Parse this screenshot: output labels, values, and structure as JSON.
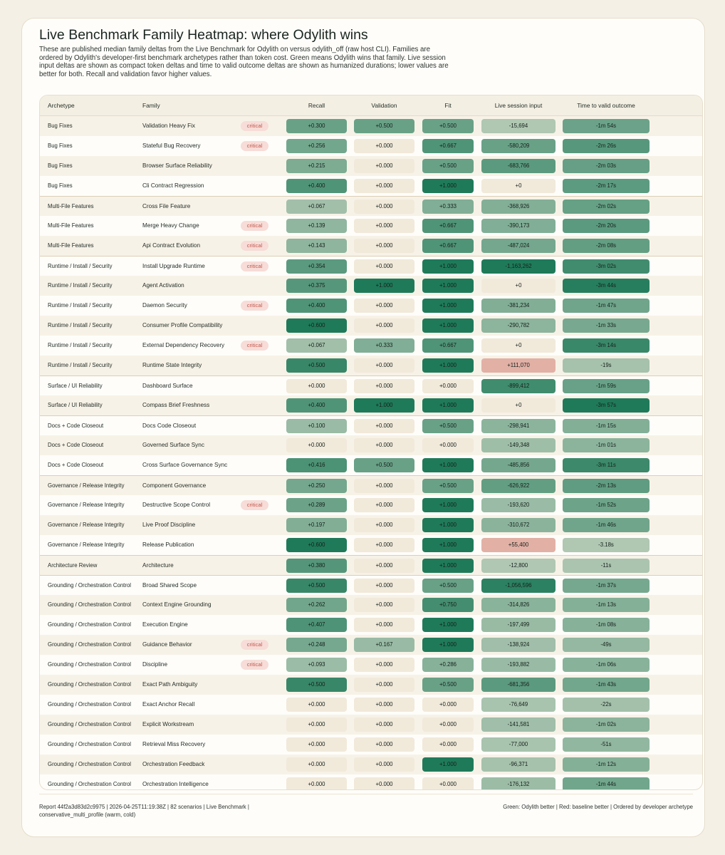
{
  "title": "Live Benchmark Family Heatmap: where Odylith wins",
  "subtitle": "These are published median family deltas from the Live Benchmark for Odylith on versus odylith_off (raw host CLI). Families are ordered by Odylith's developer-first benchmark archetypes rather than token cost. Green means Odylith wins that family. Live session input deltas are shown as compact token deltas and time to valid outcome deltas are shown as humanized durations; lower values are better for both. Recall and validation favor higher values.",
  "footer": {
    "left": "Report 44f2a3d83d2c9975 | 2026-04-25T11:19:38Z | 82 scenarios | Live Benchmark | conservative_multi_profile (warm, cold)",
    "right": "Green: Odylith better | Red: baseline better | Ordered by developer archetype"
  },
  "colors": {
    "win_strong": "#1f7a5a",
    "neutral": "#f1e9da",
    "loss": "#e2b0a5",
    "critical_bg": "#f7dcd7",
    "critical_text": "#c25a4f"
  },
  "chart_data": {
    "type": "heatmap",
    "columns": [
      "Archetype",
      "Family",
      "Recall",
      "Validation",
      "Fit",
      "Live session input",
      "Time to valid outcome"
    ],
    "critical_label": "critical",
    "rows": [
      {
        "archetype": "Bug Fixes",
        "family": "Validation Heavy Fix",
        "critical": true,
        "recall": "+0.300",
        "validation": "+0.500",
        "fit": "+0.500",
        "input": "-15,694",
        "time": "-1m 54s",
        "recall_v": 0.3,
        "validation_v": 0.5,
        "fit_v": 0.5,
        "input_v": -15694,
        "time_v": -114
      },
      {
        "archetype": "Bug Fixes",
        "family": "Stateful Bug Recovery",
        "critical": true,
        "recall": "+0.256",
        "validation": "+0.000",
        "fit": "+0.667",
        "input": "-580,209",
        "time": "-2m 26s",
        "recall_v": 0.256,
        "validation_v": 0,
        "fit_v": 0.667,
        "input_v": -580209,
        "time_v": -146
      },
      {
        "archetype": "Bug Fixes",
        "family": "Browser Surface Reliability",
        "critical": false,
        "recall": "+0.215",
        "validation": "+0.000",
        "fit": "+0.500",
        "input": "-683,766",
        "time": "-2m 03s",
        "recall_v": 0.215,
        "validation_v": 0,
        "fit_v": 0.5,
        "input_v": -683766,
        "time_v": -123
      },
      {
        "archetype": "Bug Fixes",
        "family": "Cli Contract Regression",
        "critical": false,
        "recall": "+0.400",
        "validation": "+0.000",
        "fit": "+1.000",
        "input": "+0",
        "time": "-2m 17s",
        "recall_v": 0.4,
        "validation_v": 0,
        "fit_v": 1,
        "input_v": 0,
        "time_v": -137
      },
      {
        "archetype": "Multi-File Features",
        "family": "Cross File Feature",
        "critical": false,
        "recall": "+0.067",
        "validation": "+0.000",
        "fit": "+0.333",
        "input": "-368,926",
        "time": "-2m 02s",
        "recall_v": 0.067,
        "validation_v": 0,
        "fit_v": 0.333,
        "input_v": -368926,
        "time_v": -122
      },
      {
        "archetype": "Multi-File Features",
        "family": "Merge Heavy Change",
        "critical": true,
        "recall": "+0.139",
        "validation": "+0.000",
        "fit": "+0.667",
        "input": "-390,173",
        "time": "-2m 20s",
        "recall_v": 0.139,
        "validation_v": 0,
        "fit_v": 0.667,
        "input_v": -390173,
        "time_v": -140
      },
      {
        "archetype": "Multi-File Features",
        "family": "Api Contract Evolution",
        "critical": true,
        "recall": "+0.143",
        "validation": "+0.000",
        "fit": "+0.667",
        "input": "-487,024",
        "time": "-2m 08s",
        "recall_v": 0.143,
        "validation_v": 0,
        "fit_v": 0.667,
        "input_v": -487024,
        "time_v": -128
      },
      {
        "archetype": "Runtime / Install / Security",
        "family": "Install Upgrade Runtime",
        "critical": true,
        "recall": "+0.354",
        "validation": "+0.000",
        "fit": "+1.000",
        "input": "-1,163,262",
        "time": "-3m 02s",
        "recall_v": 0.354,
        "validation_v": 0,
        "fit_v": 1,
        "input_v": -1163262,
        "time_v": -182
      },
      {
        "archetype": "Runtime / Install / Security",
        "family": "Agent Activation",
        "critical": false,
        "recall": "+0.375",
        "validation": "+1.000",
        "fit": "+1.000",
        "input": "+0",
        "time": "-3m 44s",
        "recall_v": 0.375,
        "validation_v": 1,
        "fit_v": 1,
        "input_v": 0,
        "time_v": -224
      },
      {
        "archetype": "Runtime / Install / Security",
        "family": "Daemon Security",
        "critical": true,
        "recall": "+0.400",
        "validation": "+0.000",
        "fit": "+1.000",
        "input": "-381,234",
        "time": "-1m 47s",
        "recall_v": 0.4,
        "validation_v": 0,
        "fit_v": 1,
        "input_v": -381234,
        "time_v": -107
      },
      {
        "archetype": "Runtime / Install / Security",
        "family": "Consumer Profile Compatibility",
        "critical": false,
        "recall": "+0.600",
        "validation": "+0.000",
        "fit": "+1.000",
        "input": "-290,782",
        "time": "-1m 33s",
        "recall_v": 0.6,
        "validation_v": 0,
        "fit_v": 1,
        "input_v": -290782,
        "time_v": -93
      },
      {
        "archetype": "Runtime / Install / Security",
        "family": "External Dependency Recovery",
        "critical": true,
        "recall": "+0.067",
        "validation": "+0.333",
        "fit": "+0.667",
        "input": "+0",
        "time": "-3m 14s",
        "recall_v": 0.067,
        "validation_v": 0.333,
        "fit_v": 0.667,
        "input_v": 0,
        "time_v": -194
      },
      {
        "archetype": "Runtime / Install / Security",
        "family": "Runtime State Integrity",
        "critical": false,
        "recall": "+0.500",
        "validation": "+0.000",
        "fit": "+1.000",
        "input": "+111,070",
        "time": "-19s",
        "recall_v": 0.5,
        "validation_v": 0,
        "fit_v": 1,
        "input_v": 111070,
        "time_v": -19
      },
      {
        "archetype": "Surface / UI Reliability",
        "family": "Dashboard Surface",
        "critical": false,
        "recall": "+0.000",
        "validation": "+0.000",
        "fit": "+0.000",
        "input": "-899,412",
        "time": "-1m 59s",
        "recall_v": 0,
        "validation_v": 0,
        "fit_v": 0,
        "input_v": -899412,
        "time_v": -119
      },
      {
        "archetype": "Surface / UI Reliability",
        "family": "Compass Brief Freshness",
        "critical": false,
        "recall": "+0.400",
        "validation": "+1.000",
        "fit": "+1.000",
        "input": "+0",
        "time": "-3m 57s",
        "recall_v": 0.4,
        "validation_v": 1,
        "fit_v": 1,
        "input_v": 0,
        "time_v": -237
      },
      {
        "archetype": "Docs + Code Closeout",
        "family": "Docs Code Closeout",
        "critical": false,
        "recall": "+0.100",
        "validation": "+0.000",
        "fit": "+0.500",
        "input": "-298,941",
        "time": "-1m 15s",
        "recall_v": 0.1,
        "validation_v": 0,
        "fit_v": 0.5,
        "input_v": -298941,
        "time_v": -75
      },
      {
        "archetype": "Docs + Code Closeout",
        "family": "Governed Surface Sync",
        "critical": false,
        "recall": "+0.000",
        "validation": "+0.000",
        "fit": "+0.000",
        "input": "-149,348",
        "time": "-1m 01s",
        "recall_v": 0,
        "validation_v": 0,
        "fit_v": 0,
        "input_v": -149348,
        "time_v": -61
      },
      {
        "archetype": "Docs + Code Closeout",
        "family": "Cross Surface Governance Sync",
        "critical": false,
        "recall": "+0.416",
        "validation": "+0.500",
        "fit": "+1.000",
        "input": "-485,856",
        "time": "-3m 11s",
        "recall_v": 0.416,
        "validation_v": 0.5,
        "fit_v": 1,
        "input_v": -485856,
        "time_v": -191
      },
      {
        "archetype": "Governance / Release Integrity",
        "family": "Component Governance",
        "critical": false,
        "recall": "+0.250",
        "validation": "+0.000",
        "fit": "+0.500",
        "input": "-626,922",
        "time": "-2m 13s",
        "recall_v": 0.25,
        "validation_v": 0,
        "fit_v": 0.5,
        "input_v": -626922,
        "time_v": -133
      },
      {
        "archetype": "Governance / Release Integrity",
        "family": "Destructive Scope Control",
        "critical": true,
        "recall": "+0.289",
        "validation": "+0.000",
        "fit": "+1.000",
        "input": "-193,620",
        "time": "-1m 52s",
        "recall_v": 0.289,
        "validation_v": 0,
        "fit_v": 1,
        "input_v": -193620,
        "time_v": -112
      },
      {
        "archetype": "Governance / Release Integrity",
        "family": "Live Proof Discipline",
        "critical": false,
        "recall": "+0.197",
        "validation": "+0.000",
        "fit": "+1.000",
        "input": "-310,672",
        "time": "-1m 46s",
        "recall_v": 0.197,
        "validation_v": 0,
        "fit_v": 1,
        "input_v": -310672,
        "time_v": -106
      },
      {
        "archetype": "Governance / Release Integrity",
        "family": "Release Publication",
        "critical": false,
        "recall": "+0.600",
        "validation": "+0.000",
        "fit": "+1.000",
        "input": "+55,400",
        "time": "-3.18s",
        "recall_v": 0.6,
        "validation_v": 0,
        "fit_v": 1,
        "input_v": 55400,
        "time_v": -3.18
      },
      {
        "archetype": "Architecture Review",
        "family": "Architecture",
        "critical": false,
        "recall": "+0.380",
        "validation": "+0.000",
        "fit": "+1.000",
        "input": "-12,800",
        "time": "-11s",
        "recall_v": 0.38,
        "validation_v": 0,
        "fit_v": 1,
        "input_v": -12800,
        "time_v": -11
      },
      {
        "archetype": "Grounding / Orchestration Control",
        "family": "Broad Shared Scope",
        "critical": false,
        "recall": "+0.500",
        "validation": "+0.000",
        "fit": "+0.500",
        "input": "-1,056,596",
        "time": "-1m 37s",
        "recall_v": 0.5,
        "validation_v": 0,
        "fit_v": 0.5,
        "input_v": -1056596,
        "time_v": -97
      },
      {
        "archetype": "Grounding / Orchestration Control",
        "family": "Context Engine Grounding",
        "critical": false,
        "recall": "+0.262",
        "validation": "+0.000",
        "fit": "+0.750",
        "input": "-314,826",
        "time": "-1m 13s",
        "recall_v": 0.262,
        "validation_v": 0,
        "fit_v": 0.75,
        "input_v": -314826,
        "time_v": -73
      },
      {
        "archetype": "Grounding / Orchestration Control",
        "family": "Execution Engine",
        "critical": false,
        "recall": "+0.407",
        "validation": "+0.000",
        "fit": "+1.000",
        "input": "-197,499",
        "time": "-1m 08s",
        "recall_v": 0.407,
        "validation_v": 0,
        "fit_v": 1,
        "input_v": -197499,
        "time_v": -68
      },
      {
        "archetype": "Grounding / Orchestration Control",
        "family": "Guidance Behavior",
        "critical": true,
        "recall": "+0.248",
        "validation": "+0.167",
        "fit": "+1.000",
        "input": "-138,924",
        "time": "-49s",
        "recall_v": 0.248,
        "validation_v": 0.167,
        "fit_v": 1,
        "input_v": -138924,
        "time_v": -49
      },
      {
        "archetype": "Grounding / Orchestration Control",
        "family": "Discipline",
        "critical": true,
        "recall": "+0.093",
        "validation": "+0.000",
        "fit": "+0.286",
        "input": "-193,882",
        "time": "-1m 06s",
        "recall_v": 0.093,
        "validation_v": 0,
        "fit_v": 0.286,
        "input_v": -193882,
        "time_v": -66
      },
      {
        "archetype": "Grounding / Orchestration Control",
        "family": "Exact Path Ambiguity",
        "critical": false,
        "recall": "+0.500",
        "validation": "+0.000",
        "fit": "+0.500",
        "input": "-681,356",
        "time": "-1m 43s",
        "recall_v": 0.5,
        "validation_v": 0,
        "fit_v": 0.5,
        "input_v": -681356,
        "time_v": -103
      },
      {
        "archetype": "Grounding / Orchestration Control",
        "family": "Exact Anchor Recall",
        "critical": false,
        "recall": "+0.000",
        "validation": "+0.000",
        "fit": "+0.000",
        "input": "-76,649",
        "time": "-22s",
        "recall_v": 0,
        "validation_v": 0,
        "fit_v": 0,
        "input_v": -76649,
        "time_v": -22
      },
      {
        "archetype": "Grounding / Orchestration Control",
        "family": "Explicit Workstream",
        "critical": false,
        "recall": "+0.000",
        "validation": "+0.000",
        "fit": "+0.000",
        "input": "-141,581",
        "time": "-1m 02s",
        "recall_v": 0,
        "validation_v": 0,
        "fit_v": 0,
        "input_v": -141581,
        "time_v": -62
      },
      {
        "archetype": "Grounding / Orchestration Control",
        "family": "Retrieval Miss Recovery",
        "critical": false,
        "recall": "+0.000",
        "validation": "+0.000",
        "fit": "+0.000",
        "input": "-77,000",
        "time": "-51s",
        "recall_v": 0,
        "validation_v": 0,
        "fit_v": 0,
        "input_v": -77000,
        "time_v": -51
      },
      {
        "archetype": "Grounding / Orchestration Control",
        "family": "Orchestration Feedback",
        "critical": false,
        "recall": "+0.000",
        "validation": "+0.000",
        "fit": "+1.000",
        "input": "-96,371",
        "time": "-1m 12s",
        "recall_v": 0,
        "validation_v": 0,
        "fit_v": 1,
        "input_v": -96371,
        "time_v": -72
      },
      {
        "archetype": "Grounding / Orchestration Control",
        "family": "Orchestration Intelligence",
        "critical": false,
        "recall": "+0.000",
        "validation": "+0.000",
        "fit": "+0.000",
        "input": "-176,132",
        "time": "-1m 44s",
        "recall_v": 0,
        "validation_v": 0,
        "fit_v": 0,
        "input_v": -176132,
        "time_v": -104
      }
    ]
  }
}
